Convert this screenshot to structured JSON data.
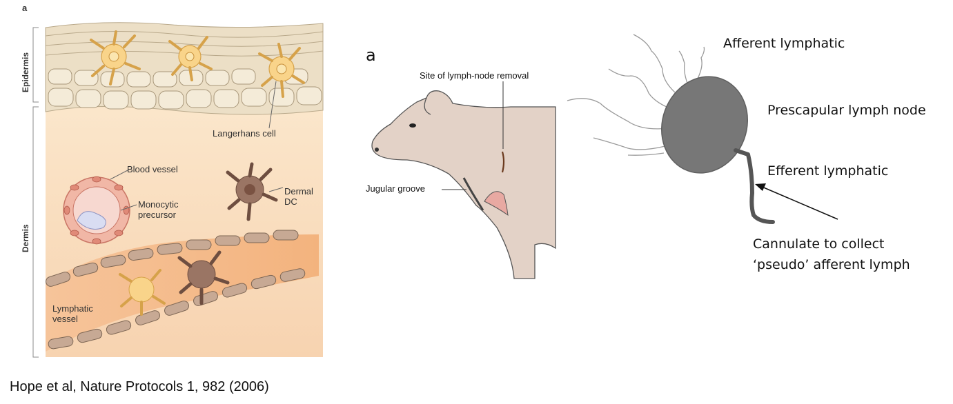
{
  "skin_panel": {
    "panel_letter": "a",
    "layer_epidermis": "Epidermis",
    "layer_dermis": "Dermis",
    "langerhans_cell": "Langerhans cell",
    "blood_vessel": "Blood vessel",
    "monocytic_precursor_line1": "Monocytic",
    "monocytic_precursor_line2": "precursor",
    "dermal_dc_line1": "Dermal",
    "dermal_dc_line2": "DC",
    "lymphatic_vessel_line1": "Lymphatic",
    "lymphatic_vessel_line2": "vessel"
  },
  "cow_panel": {
    "panel_letter": "a",
    "site_of_removal": "Site of lymph-node removal",
    "jugular_groove": "Jugular groove"
  },
  "lymph_node_panel": {
    "afferent_lymphatic": "Afferent lymphatic",
    "prescapular_lymph_node": "Prescapular lymph node",
    "efferent_lymphatic": "Efferent lymphatic",
    "cannulate_line1": "Cannulate to collect",
    "cannulate_line2": "‘pseudo’ afferent lymph"
  },
  "citation": "Hope  et al, Nature Protocols 1, 982 (2006)"
}
